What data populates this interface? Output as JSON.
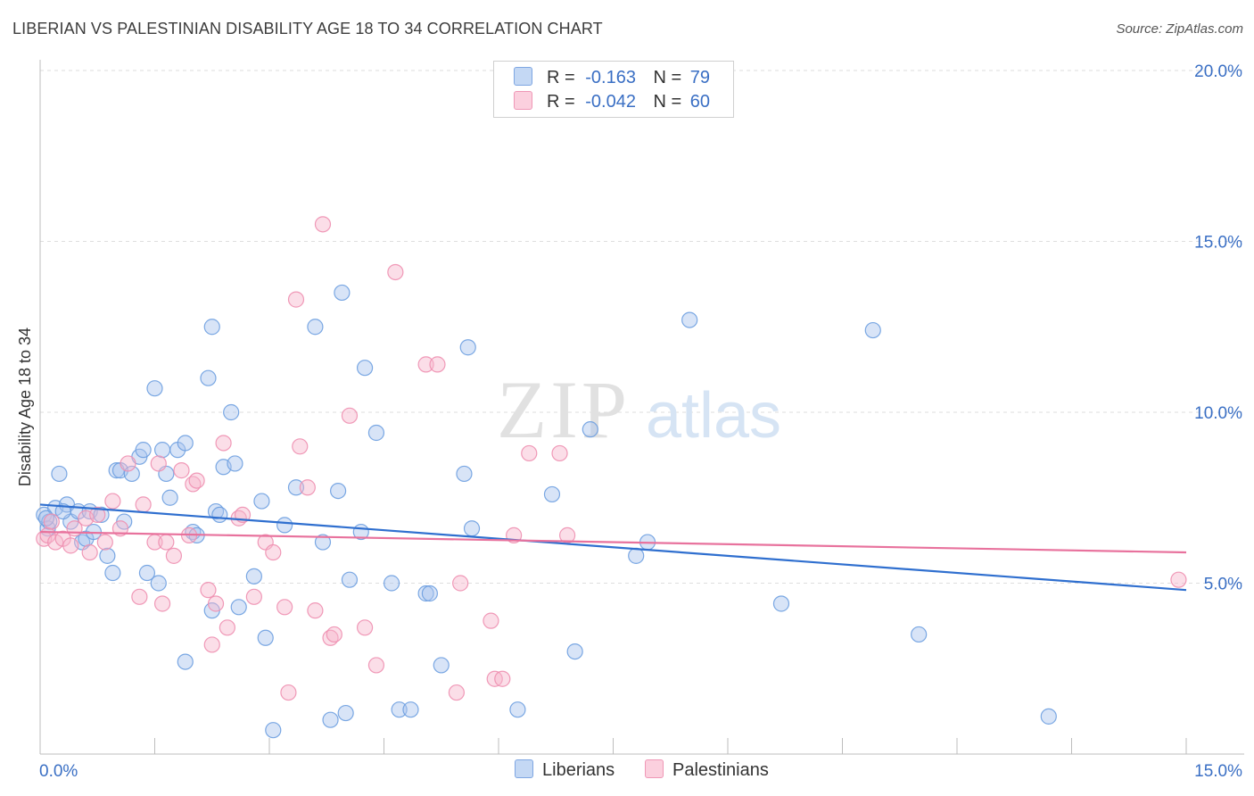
{
  "header": {
    "title": "LIBERIAN VS PALESTINIAN DISABILITY AGE 18 TO 34 CORRELATION CHART",
    "source": "Source: ZipAtlas.com"
  },
  "watermark": {
    "zip": "ZIP",
    "atlas": "atlas"
  },
  "legend": {
    "rows": [
      {
        "r_label": "R =",
        "r_value": "-0.163",
        "n_label": "N =",
        "n_value": "79",
        "color": "#a9c4ee"
      },
      {
        "r_label": "R =",
        "r_value": "-0.042",
        "n_label": "N =",
        "n_value": "60",
        "color": "#f6b6cb"
      }
    ]
  },
  "bottom_legend": [
    {
      "label": "Liberians",
      "color": "#a9c4ee"
    },
    {
      "label": "Palestinians",
      "color": "#f6b6cb"
    }
  ],
  "chart_data": {
    "type": "scatter",
    "title": "LIBERIAN VS PALESTINIAN DISABILITY AGE 18 TO 34 CORRELATION CHART",
    "xlabel": "",
    "ylabel": "Disability Age 18 to 34",
    "xlim": [
      0,
      15
    ],
    "ylim": [
      0,
      20
    ],
    "x_tick_labels": [
      "0.0%",
      "15.0%"
    ],
    "y_ticks": [
      5,
      10,
      15,
      20
    ],
    "y_tick_labels": [
      "5.0%",
      "10.0%",
      "15.0%",
      "20.0%"
    ],
    "grid": true,
    "legend_position": "top-center",
    "series": [
      {
        "name": "Liberians",
        "color": "#6d9ee0",
        "fill": "#a9c4ee",
        "trend": {
          "x": [
            0,
            15
          ],
          "y": [
            7.3,
            4.8
          ],
          "color": "#2f6fcf"
        },
        "points": [
          [
            0.05,
            7.0
          ],
          [
            0.1,
            6.6
          ],
          [
            0.12,
            6.8
          ],
          [
            0.2,
            7.2
          ],
          [
            0.25,
            8.2
          ],
          [
            0.35,
            7.3
          ],
          [
            0.4,
            6.8
          ],
          [
            0.5,
            7.1
          ],
          [
            0.55,
            6.2
          ],
          [
            0.6,
            6.3
          ],
          [
            0.65,
            7.1
          ],
          [
            0.7,
            6.5
          ],
          [
            0.8,
            7.0
          ],
          [
            0.88,
            5.8
          ],
          [
            0.95,
            5.3
          ],
          [
            1.0,
            8.3
          ],
          [
            1.05,
            8.3
          ],
          [
            1.1,
            6.8
          ],
          [
            1.2,
            8.2
          ],
          [
            1.3,
            8.7
          ],
          [
            1.35,
            8.9
          ],
          [
            1.4,
            5.3
          ],
          [
            1.5,
            10.7
          ],
          [
            1.55,
            5.0
          ],
          [
            1.6,
            8.9
          ],
          [
            1.65,
            8.2
          ],
          [
            1.7,
            7.5
          ],
          [
            1.8,
            8.9
          ],
          [
            1.9,
            9.1
          ],
          [
            1.9,
            2.7
          ],
          [
            2.0,
            6.5
          ],
          [
            2.05,
            6.4
          ],
          [
            2.2,
            11.0
          ],
          [
            2.25,
            12.5
          ],
          [
            2.25,
            4.2
          ],
          [
            2.3,
            7.1
          ],
          [
            2.35,
            7.0
          ],
          [
            2.4,
            8.4
          ],
          [
            2.5,
            10.0
          ],
          [
            2.55,
            8.5
          ],
          [
            2.6,
            4.3
          ],
          [
            2.8,
            5.2
          ],
          [
            2.9,
            7.4
          ],
          [
            2.95,
            3.4
          ],
          [
            3.05,
            0.7
          ],
          [
            3.2,
            6.7
          ],
          [
            3.35,
            7.8
          ],
          [
            3.6,
            12.5
          ],
          [
            3.7,
            6.2
          ],
          [
            3.8,
            1.0
          ],
          [
            3.9,
            7.7
          ],
          [
            3.95,
            13.5
          ],
          [
            4.0,
            1.2
          ],
          [
            4.05,
            5.1
          ],
          [
            4.2,
            6.5
          ],
          [
            4.25,
            11.3
          ],
          [
            4.4,
            9.4
          ],
          [
            4.6,
            5.0
          ],
          [
            4.7,
            1.3
          ],
          [
            4.85,
            1.3
          ],
          [
            5.05,
            4.7
          ],
          [
            5.1,
            4.7
          ],
          [
            5.25,
            2.6
          ],
          [
            5.55,
            8.2
          ],
          [
            5.6,
            11.9
          ],
          [
            5.65,
            6.6
          ],
          [
            6.25,
            1.3
          ],
          [
            6.7,
            7.6
          ],
          [
            7.0,
            3.0
          ],
          [
            7.2,
            9.5
          ],
          [
            7.8,
            5.8
          ],
          [
            7.95,
            6.2
          ],
          [
            8.5,
            12.7
          ],
          [
            9.7,
            4.4
          ],
          [
            10.9,
            12.4
          ],
          [
            11.5,
            3.5
          ],
          [
            13.2,
            1.1
          ],
          [
            0.08,
            6.9
          ],
          [
            0.3,
            7.1
          ]
        ]
      },
      {
        "name": "Palestinians",
        "color": "#ee8fb0",
        "fill": "#f6b6cb",
        "trend": {
          "x": [
            0,
            15
          ],
          "y": [
            6.5,
            5.9
          ],
          "color": "#e8729d"
        },
        "points": [
          [
            0.05,
            6.3
          ],
          [
            0.1,
            6.4
          ],
          [
            0.15,
            6.8
          ],
          [
            0.2,
            6.2
          ],
          [
            0.3,
            6.3
          ],
          [
            0.45,
            6.6
          ],
          [
            0.6,
            6.9
          ],
          [
            0.65,
            5.9
          ],
          [
            0.75,
            7.0
          ],
          [
            0.85,
            6.2
          ],
          [
            0.95,
            7.4
          ],
          [
            1.05,
            6.6
          ],
          [
            1.15,
            8.5
          ],
          [
            1.3,
            4.6
          ],
          [
            1.35,
            7.3
          ],
          [
            1.5,
            6.2
          ],
          [
            1.55,
            8.5
          ],
          [
            1.6,
            4.4
          ],
          [
            1.65,
            6.2
          ],
          [
            1.75,
            5.8
          ],
          [
            1.85,
            8.3
          ],
          [
            1.95,
            6.4
          ],
          [
            2.0,
            7.9
          ],
          [
            2.05,
            8.0
          ],
          [
            2.2,
            4.8
          ],
          [
            2.25,
            3.2
          ],
          [
            2.3,
            4.4
          ],
          [
            2.4,
            9.1
          ],
          [
            2.45,
            3.7
          ],
          [
            2.6,
            6.9
          ],
          [
            2.65,
            7.0
          ],
          [
            2.8,
            4.6
          ],
          [
            2.95,
            6.2
          ],
          [
            3.05,
            5.9
          ],
          [
            3.2,
            4.3
          ],
          [
            3.25,
            1.8
          ],
          [
            3.35,
            13.3
          ],
          [
            3.4,
            9.0
          ],
          [
            3.5,
            7.8
          ],
          [
            3.6,
            4.2
          ],
          [
            3.7,
            15.5
          ],
          [
            3.8,
            3.4
          ],
          [
            3.85,
            3.5
          ],
          [
            4.05,
            9.9
          ],
          [
            4.25,
            3.7
          ],
          [
            4.4,
            2.6
          ],
          [
            4.65,
            14.1
          ],
          [
            5.05,
            11.4
          ],
          [
            5.2,
            11.4
          ],
          [
            5.45,
            1.8
          ],
          [
            5.5,
            5.0
          ],
          [
            5.9,
            3.9
          ],
          [
            5.95,
            2.2
          ],
          [
            6.05,
            2.2
          ],
          [
            6.2,
            6.4
          ],
          [
            6.4,
            8.8
          ],
          [
            6.8,
            8.8
          ],
          [
            6.9,
            6.4
          ],
          [
            14.9,
            5.1
          ],
          [
            0.4,
            6.1
          ]
        ]
      }
    ]
  }
}
